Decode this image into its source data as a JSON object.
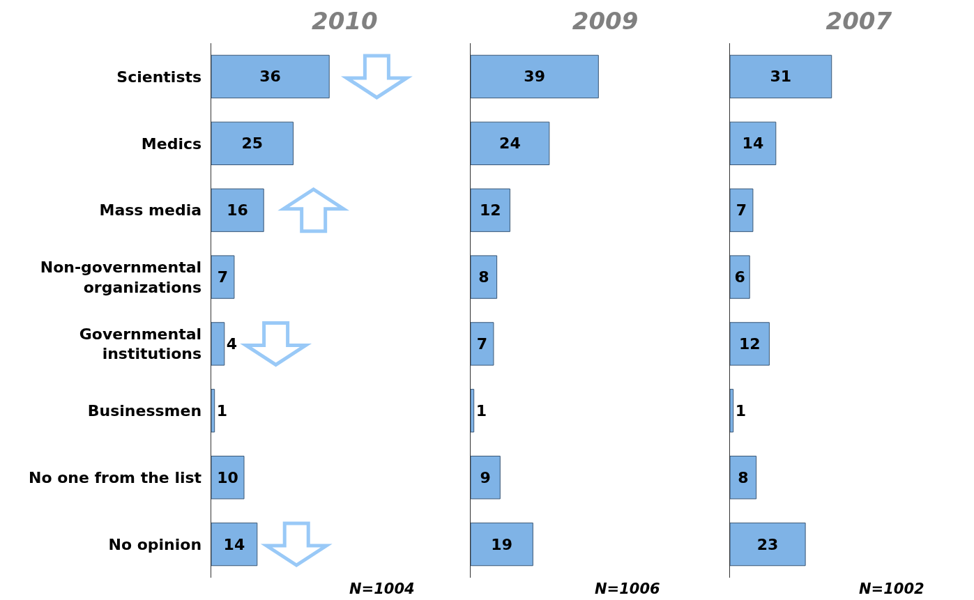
{
  "chart_data": [
    {
      "type": "bar",
      "orientation": "horizontal",
      "title": "2010",
      "categories": [
        "Scientists",
        "Medics",
        "Mass media",
        "Non-governmental organizations",
        "Governmental institutions",
        "Businessmen",
        "No one from the list",
        "No opinion"
      ],
      "values": [
        36,
        25,
        16,
        7,
        4,
        1,
        10,
        14
      ],
      "color": "#7fb3e6",
      "data_labels": true,
      "tick_labels": "y",
      "annotations": [
        "N=1004"
      ]
    },
    {
      "type": "bar",
      "orientation": "horizontal",
      "title": "2009",
      "categories": [
        null,
        null,
        null,
        null,
        null,
        null,
        null,
        null
      ],
      "values": [
        39,
        24,
        12,
        8,
        7,
        1,
        9,
        19
      ],
      "color": "#7fb3e6",
      "data_labels": true,
      "tick_labels": false,
      "annotations": [
        "N=1006"
      ]
    },
    {
      "type": "bar",
      "orientation": "horizontal",
      "title": "2007",
      "categories": [
        null,
        null,
        null,
        null,
        null,
        null,
        null,
        null
      ],
      "values": [
        31,
        14,
        7,
        6,
        12,
        1,
        8,
        23
      ],
      "color": "#7fb3e6",
      "data_labels": true,
      "tick_labels": false,
      "annotations": [
        "N=1002"
      ]
    }
  ]
}
